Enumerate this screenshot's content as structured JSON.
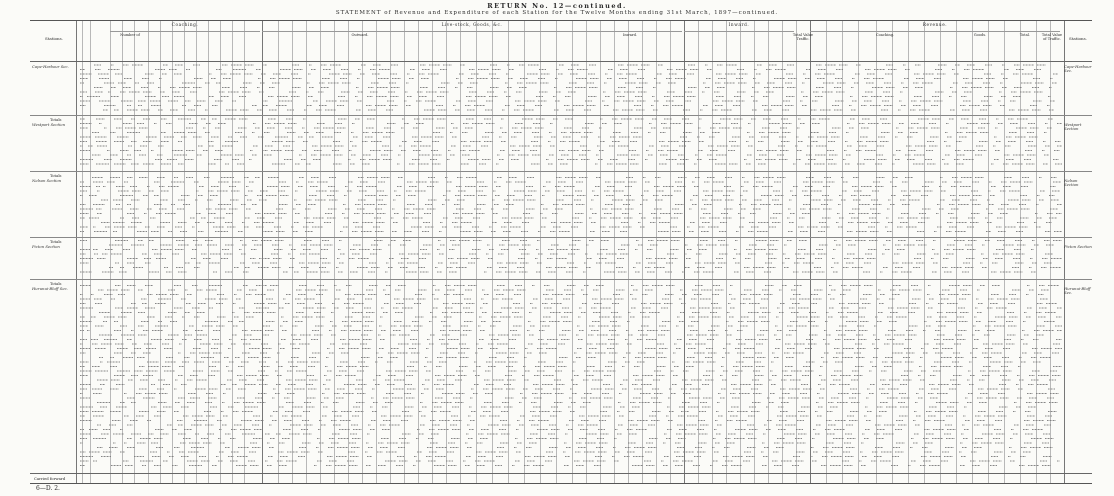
{
  "document": {
    "return_no": "RETURN No. 12—continued.",
    "statement": "STATEMENT of Revenue and Expenditure of each Station for the Twelve Months ending 31st March, 1897—continued.",
    "footer": "6—D. 2.",
    "carried_forward": "Carried forward"
  },
  "header": {
    "left_label": "Stations.",
    "right_label": "Stations.",
    "groups": [
      {
        "key": "coaching",
        "label": "Coaching."
      },
      {
        "key": "live_stock",
        "label": "Live-stock, Goods, &c."
      },
      {
        "key": "outward",
        "label": "Outward."
      },
      {
        "key": "inward",
        "label": "Inward."
      },
      {
        "key": "revenue",
        "label": "Revenue."
      }
    ],
    "subheads": {
      "number_of": "Number of",
      "outward": "Outward.",
      "inward": "Inward.",
      "total_value": "Total Value Traffic.",
      "coaching": "Coaching.",
      "goods": "Goods.",
      "total": "Total.",
      "total_value_of_traffic": "Total Value of Traffic."
    }
  },
  "sections": [
    {
      "key": "s1",
      "label": "Cape-Harbour Sec.",
      "totals_label": "Totals"
    },
    {
      "key": "s2",
      "label": "Westport Section",
      "totals_label": "Totals"
    },
    {
      "key": "s3",
      "label": "Nelson Section",
      "totals_label": "Totals"
    },
    {
      "key": "s4",
      "label": "Picton Section",
      "totals_label": "Totals"
    },
    {
      "key": "s5",
      "label": "Hurunui-Bluff Sec.",
      "totals_label": "Carried forward"
    }
  ]
}
